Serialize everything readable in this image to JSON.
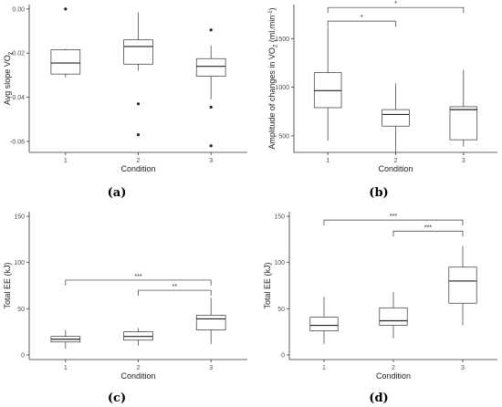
{
  "chart_data": [
    {
      "type": "boxplot",
      "caption": "(a)",
      "xlabel": "Condition",
      "ylabel": "Avg slope VO",
      "ylabel_sub": "2",
      "categories": [
        "1",
        "2",
        "3"
      ],
      "ylim": [
        -0.065,
        0.002
      ],
      "yticks": [
        0,
        -0.02,
        -0.04,
        -0.06
      ],
      "ytick_labels": [
        "0.00",
        "-0.02",
        "-0.04",
        "-0.06"
      ],
      "boxes": [
        {
          "whisker_low": -0.031,
          "q1": -0.0295,
          "median": -0.0245,
          "q3": -0.0185,
          "whisker_high": -0.018,
          "outliers": [
            0.0
          ]
        },
        {
          "whisker_low": -0.028,
          "q1": -0.025,
          "median": -0.017,
          "q3": -0.014,
          "whisker_high": -0.0015,
          "outliers": [
            -0.043,
            -0.057
          ]
        },
        {
          "whisker_low": -0.041,
          "q1": -0.0305,
          "median": -0.026,
          "q3": -0.0225,
          "whisker_high": -0.0165,
          "outliers": [
            -0.0095,
            -0.0445,
            -0.062
          ]
        }
      ],
      "brackets": []
    },
    {
      "type": "boxplot",
      "caption": "(b)",
      "xlabel": "Condition",
      "ylabel": "Amplitude of changes in VO",
      "ylabel_sub": "2",
      "ylabel_suffix": " (ml.min",
      "ylabel_sup": "-1",
      "ylabel_end": ")",
      "categories": [
        "1",
        "2",
        "3"
      ],
      "ylim": [
        330,
        1850
      ],
      "yticks": [
        500,
        1000,
        1500
      ],
      "ytick_labels": [
        "500",
        "1000",
        "1500"
      ],
      "boxes": [
        {
          "whisker_low": 450,
          "q1": 790,
          "median": 965,
          "q3": 1150,
          "whisker_high": 1620,
          "outliers": []
        },
        {
          "whisker_low": 335,
          "q1": 600,
          "median": 720,
          "q3": 770,
          "whisker_high": 1040,
          "outliers": []
        },
        {
          "whisker_low": 390,
          "q1": 460,
          "median": 770,
          "q3": 800,
          "whisker_high": 1180,
          "outliers": []
        }
      ],
      "brackets": [
        {
          "from": 0,
          "to": 1,
          "y": 1680,
          "label": "*"
        },
        {
          "from": 0,
          "to": 2,
          "y": 1820,
          "label": "*"
        }
      ]
    },
    {
      "type": "boxplot",
      "caption": "(c)",
      "xlabel": "Condition",
      "ylabel": "Total EE (kJ)",
      "categories": [
        "1",
        "2",
        "3"
      ],
      "ylim": [
        -5,
        155
      ],
      "yticks": [
        0,
        50,
        100,
        150
      ],
      "ytick_labels": [
        "0",
        "50",
        "100",
        "150"
      ],
      "boxes": [
        {
          "whisker_low": 7,
          "q1": 14,
          "median": 17,
          "q3": 20,
          "whisker_high": 27,
          "outliers": []
        },
        {
          "whisker_low": 10,
          "q1": 16,
          "median": 20,
          "q3": 25,
          "whisker_high": 29,
          "outliers": []
        },
        {
          "whisker_low": 12,
          "q1": 27,
          "median": 39,
          "q3": 43,
          "whisker_high": 62,
          "outliers": []
        }
      ],
      "brackets": [
        {
          "from": 0,
          "to": 2,
          "y": 81,
          "label": "***"
        },
        {
          "from": 1,
          "to": 2,
          "y": 70,
          "label": "**"
        }
      ]
    },
    {
      "type": "boxplot",
      "caption": "(d)",
      "xlabel": "Condition",
      "ylabel": "Total EE (kJ)",
      "categories": [
        "1",
        "2",
        "3"
      ],
      "ylim": [
        -5,
        155
      ],
      "yticks": [
        0,
        50,
        100,
        150
      ],
      "ytick_labels": [
        "0",
        "50",
        "100",
        "150"
      ],
      "boxes": [
        {
          "whisker_low": 12,
          "q1": 26,
          "median": 32,
          "q3": 41,
          "whisker_high": 63,
          "outliers": []
        },
        {
          "whisker_low": 18,
          "q1": 32,
          "median": 37,
          "q3": 51,
          "whisker_high": 68,
          "outliers": []
        },
        {
          "whisker_low": 32,
          "q1": 56,
          "median": 80,
          "q3": 95,
          "whisker_high": 118,
          "outliers": []
        }
      ],
      "brackets": [
        {
          "from": 0,
          "to": 2,
          "y": 146,
          "label": "***"
        },
        {
          "from": 1,
          "to": 2,
          "y": 134,
          "label": "***"
        }
      ]
    }
  ]
}
